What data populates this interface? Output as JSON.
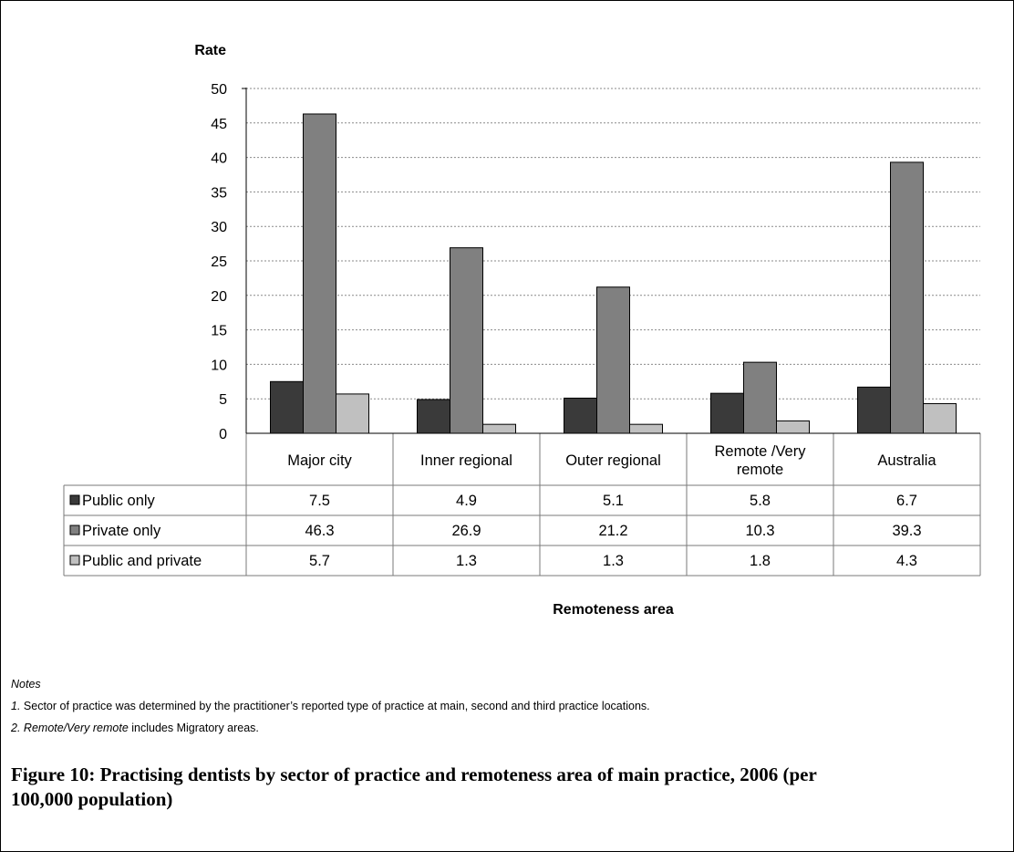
{
  "chart_data": {
    "type": "bar",
    "ylabel": "Rate",
    "xlabel": "Remoteness area",
    "ylim": [
      0,
      50
    ],
    "yticks": [
      0,
      5,
      10,
      15,
      20,
      25,
      30,
      35,
      40,
      45,
      50
    ],
    "grid": true,
    "categories": [
      "Major city",
      "Inner regional",
      "Outer regional",
      "Remote /Very remote",
      "Australia"
    ],
    "series": [
      {
        "name": "Public only",
        "color": "#3a3a3a",
        "values": [
          7.5,
          4.9,
          5.1,
          5.8,
          6.7
        ]
      },
      {
        "name": "Private only",
        "color": "#808080",
        "values": [
          46.3,
          26.9,
          21.2,
          10.3,
          39.3
        ]
      },
      {
        "name": "Public and private",
        "color": "#c0c0c0",
        "values": [
          5.7,
          1.3,
          1.3,
          1.8,
          4.3
        ]
      }
    ]
  },
  "notes": {
    "heading": "Notes",
    "note1_num": "1.",
    "note1_text": "Sector of practice was determined by the practitioner’s reported type of practice at main, second and third practice locations.",
    "note2_num": "2.",
    "note2_em": "Remote/Very remote",
    "note2_text": "includes Migratory areas."
  },
  "caption": "Figure 10: Practising dentists by sector of practice and remoteness area of main practice, 2006 (per 100,000 population)"
}
